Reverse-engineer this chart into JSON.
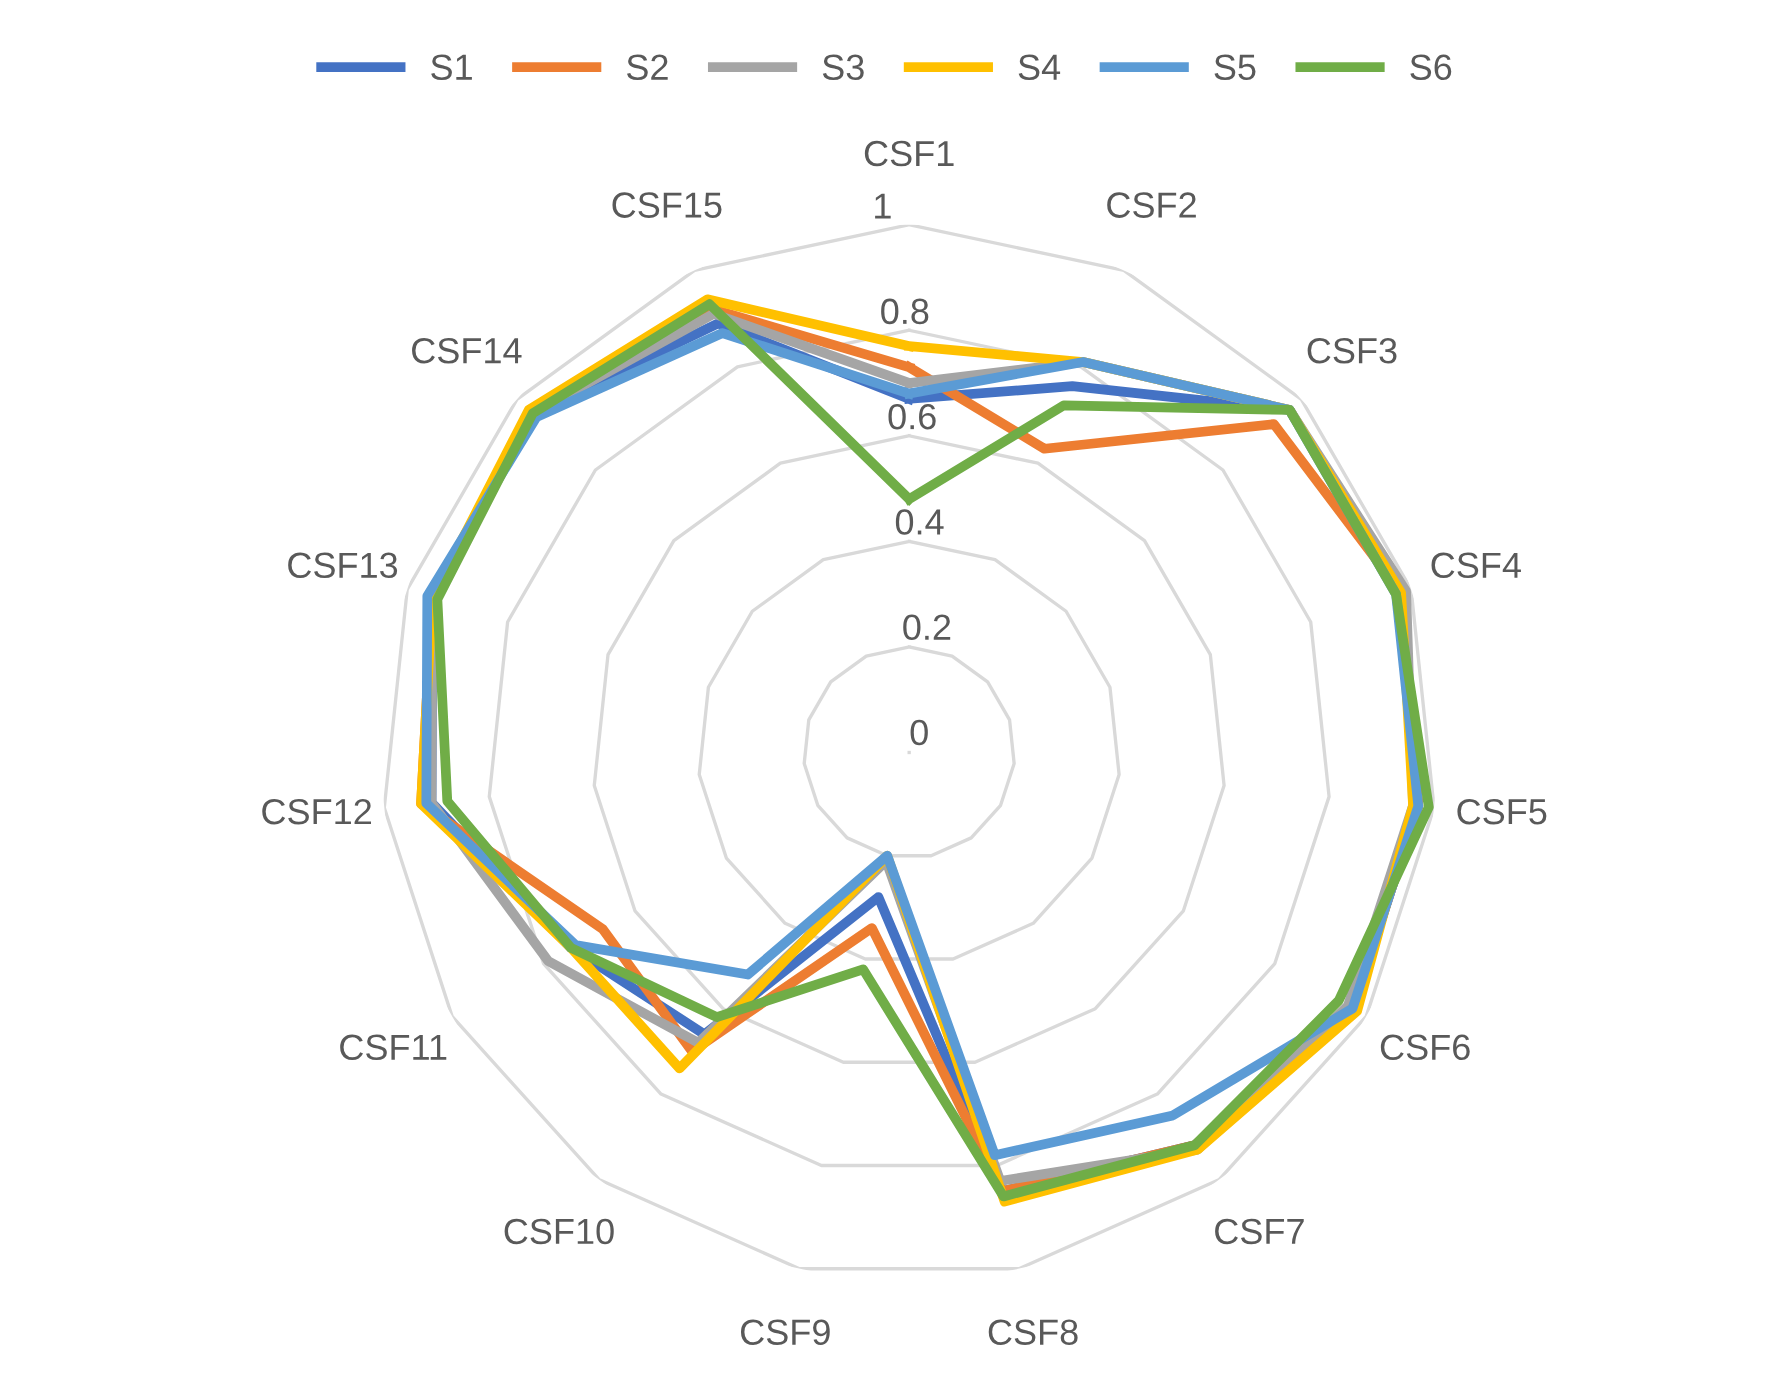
{
  "chart_data": {
    "type": "radar",
    "categories": [
      "CSF1",
      "CSF2",
      "CSF3",
      "CSF4",
      "CSF5",
      "CSF6",
      "CSF7",
      "CSF8",
      "CSF9",
      "CSF10",
      "CSF11",
      "CSF12",
      "CSF13",
      "CSF14",
      "CSF15"
    ],
    "ylim": [
      0,
      1
    ],
    "yticks": [
      0,
      0.2,
      0.4,
      0.6,
      0.8,
      1
    ],
    "grid": true,
    "legend": "top",
    "marker": "none",
    "line_style": "solid",
    "series": [
      {
        "name": "S1",
        "color": "#4472c4",
        "values": [
          0.67,
          0.76,
          0.97,
          0.98,
          0.97,
          0.97,
          0.92,
          0.85,
          0.28,
          0.66,
          0.74,
          0.91,
          0.95,
          0.96,
          0.89
        ]
      },
      {
        "name": "S2",
        "color": "#ed7d31",
        "values": [
          0.73,
          0.63,
          0.93,
          0.98,
          0.97,
          0.97,
          0.92,
          0.85,
          0.34,
          0.7,
          0.67,
          0.93,
          0.95,
          0.96,
          0.92
        ]
      },
      {
        "name": "S3",
        "color": "#a5a5a5",
        "values": [
          0.7,
          0.81,
          0.97,
          0.99,
          0.96,
          0.96,
          0.93,
          0.83,
          0.21,
          0.68,
          0.79,
          0.91,
          0.95,
          0.96,
          0.91
        ]
      },
      {
        "name": "S4",
        "color": "#ffc000",
        "values": [
          0.77,
          0.81,
          0.97,
          0.98,
          0.96,
          0.98,
          0.93,
          0.87,
          0.2,
          0.74,
          0.74,
          0.93,
          0.95,
          0.97,
          0.94
        ]
      },
      {
        "name": "S5",
        "color": "#5b9bd5",
        "values": [
          0.68,
          0.81,
          0.97,
          0.97,
          0.97,
          0.97,
          0.85,
          0.78,
          0.2,
          0.52,
          0.73,
          0.92,
          0.96,
          0.95,
          0.87
        ]
      },
      {
        "name": "S6",
        "color": "#70ad47",
        "values": [
          0.48,
          0.72,
          0.97,
          0.97,
          0.99,
          0.94,
          0.92,
          0.86,
          0.42,
          0.62,
          0.74,
          0.88,
          0.94,
          0.96,
          0.93
        ]
      }
    ]
  }
}
